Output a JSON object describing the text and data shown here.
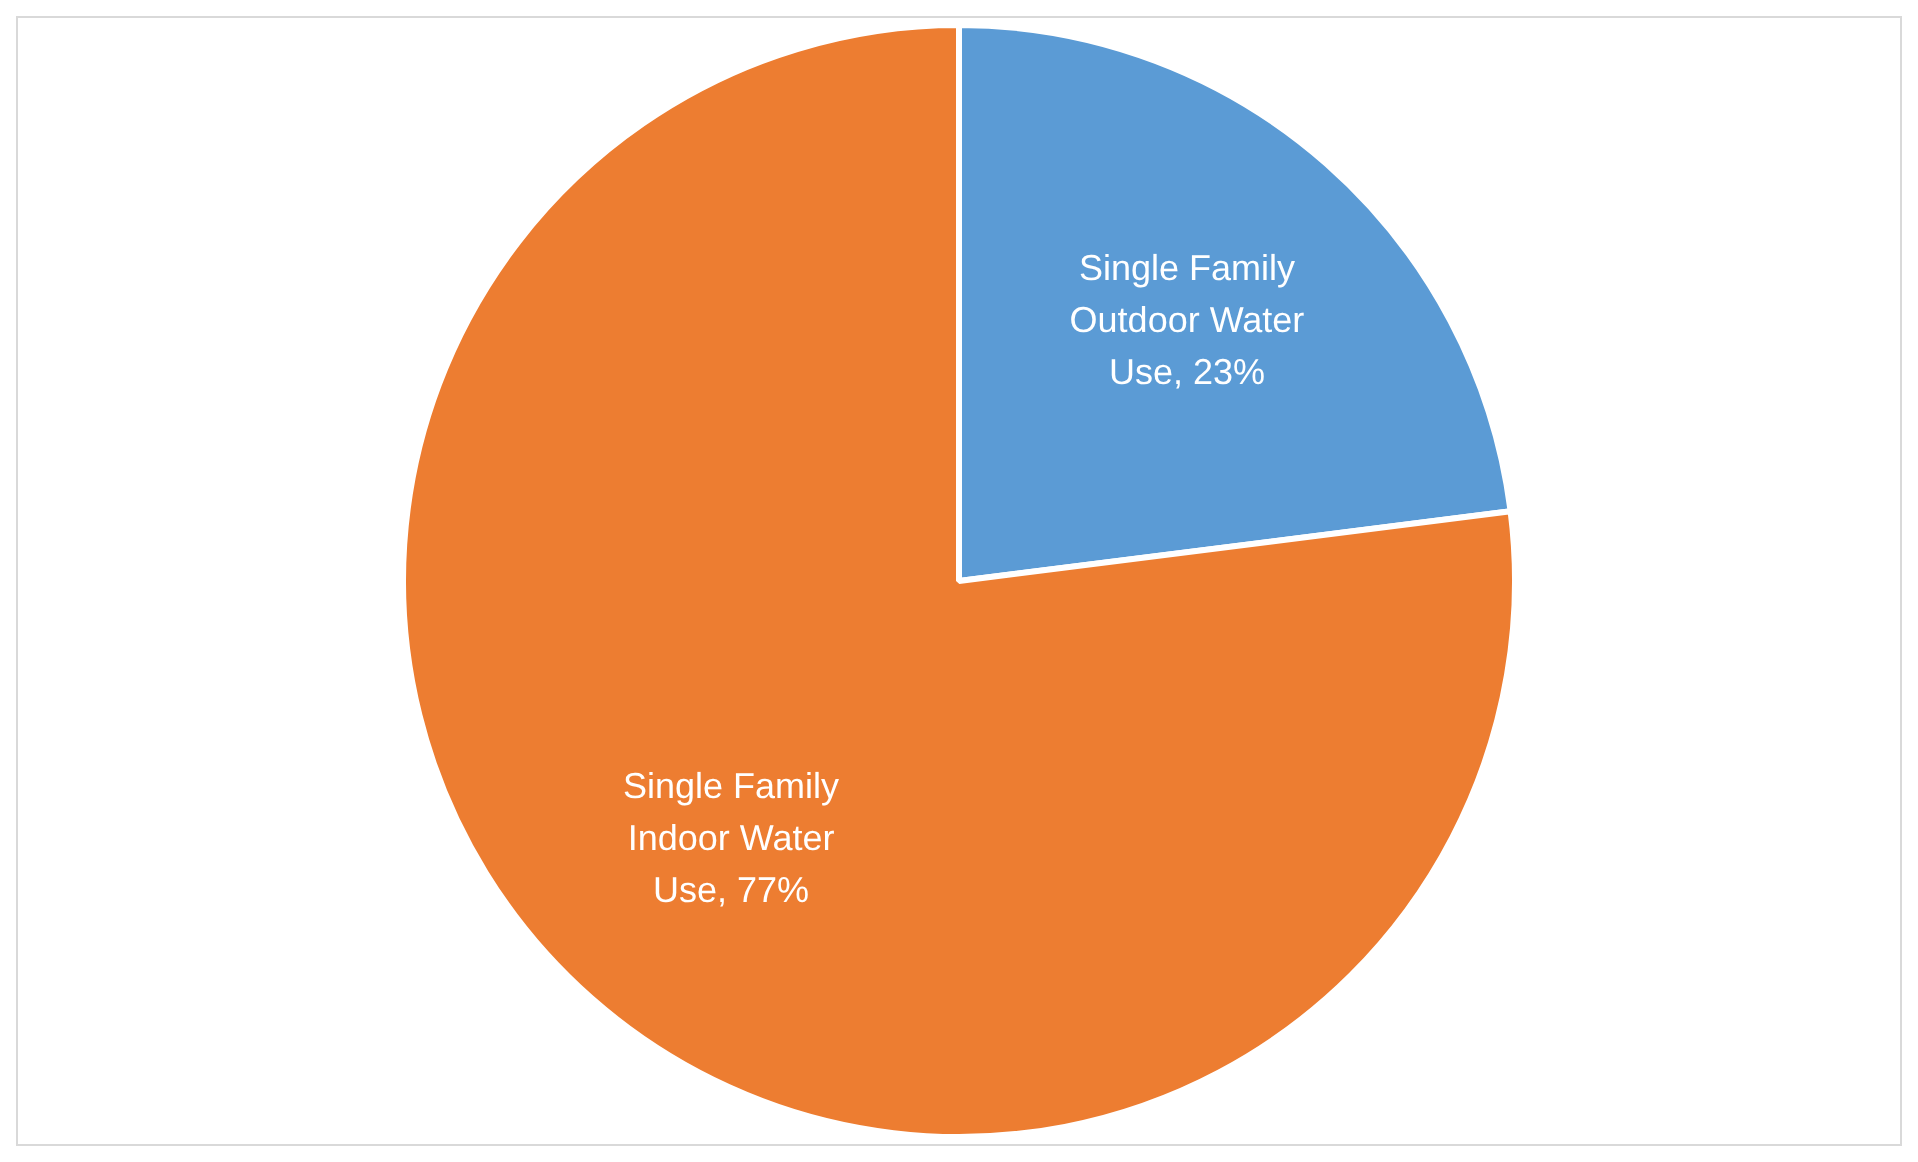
{
  "chart_data": {
    "type": "pie",
    "categories": [
      "Single Family Outdoor Water Use",
      "Single Family Indoor Water Use"
    ],
    "values": [
      23,
      77
    ],
    "colors": [
      "#5b9bd5",
      "#ed7d31"
    ],
    "value_labels": [
      "23%",
      "77%"
    ],
    "legend": false
  }
}
